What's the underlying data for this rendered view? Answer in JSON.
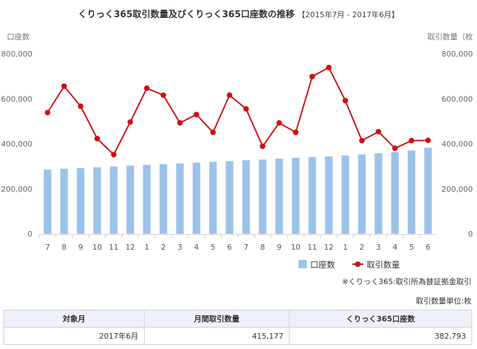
{
  "chart_data": {
    "type": "bar+line",
    "title": "くりっく365取引数量及びくりっく365口座数の推移",
    "subtitle": "【2015年7月 - 2017年6月】",
    "ylabel_left": "口座数",
    "ylabel_right": "取引数量（枚",
    "ylim": [
      0,
      800000
    ],
    "yticks": [
      "0",
      "200,000",
      "400,000",
      "600,000",
      "800,000"
    ],
    "categories": [
      "7",
      "8",
      "9",
      "10",
      "11",
      "12",
      "1",
      "2",
      "3",
      "4",
      "5",
      "6",
      "7",
      "8",
      "9",
      "10",
      "11",
      "12",
      "1",
      "2",
      "3",
      "4",
      "5",
      "6"
    ],
    "series": [
      {
        "name": "口座数",
        "type": "bar",
        "color": "#9cc2e8",
        "values": [
          285000,
          289000,
          292000,
          296000,
          299000,
          303000,
          306000,
          309000,
          313000,
          316000,
          320000,
          323000,
          327000,
          330000,
          334000,
          337000,
          341000,
          344000,
          348000,
          353000,
          358000,
          363000,
          370000,
          382793
        ]
      },
      {
        "name": "取引数量",
        "type": "line",
        "color": "#cc1111",
        "values": [
          539000,
          656000,
          567000,
          423000,
          352000,
          497000,
          647000,
          616000,
          493000,
          530000,
          451000,
          616000,
          555000,
          389000,
          493000,
          451000,
          699000,
          739000,
          592000,
          414000,
          454000,
          380000,
          414000,
          415177
        ]
      }
    ],
    "legend": "bottom-right"
  },
  "notes": {
    "source": "※くりっく365:取引所為替証拠金取引",
    "unit": "取引数量単位:枚"
  },
  "table": {
    "headers": [
      "対象月",
      "月間取引数量",
      "くりっく365口座数"
    ],
    "row": [
      "2017年6月",
      "415,177",
      "382,793"
    ]
  }
}
